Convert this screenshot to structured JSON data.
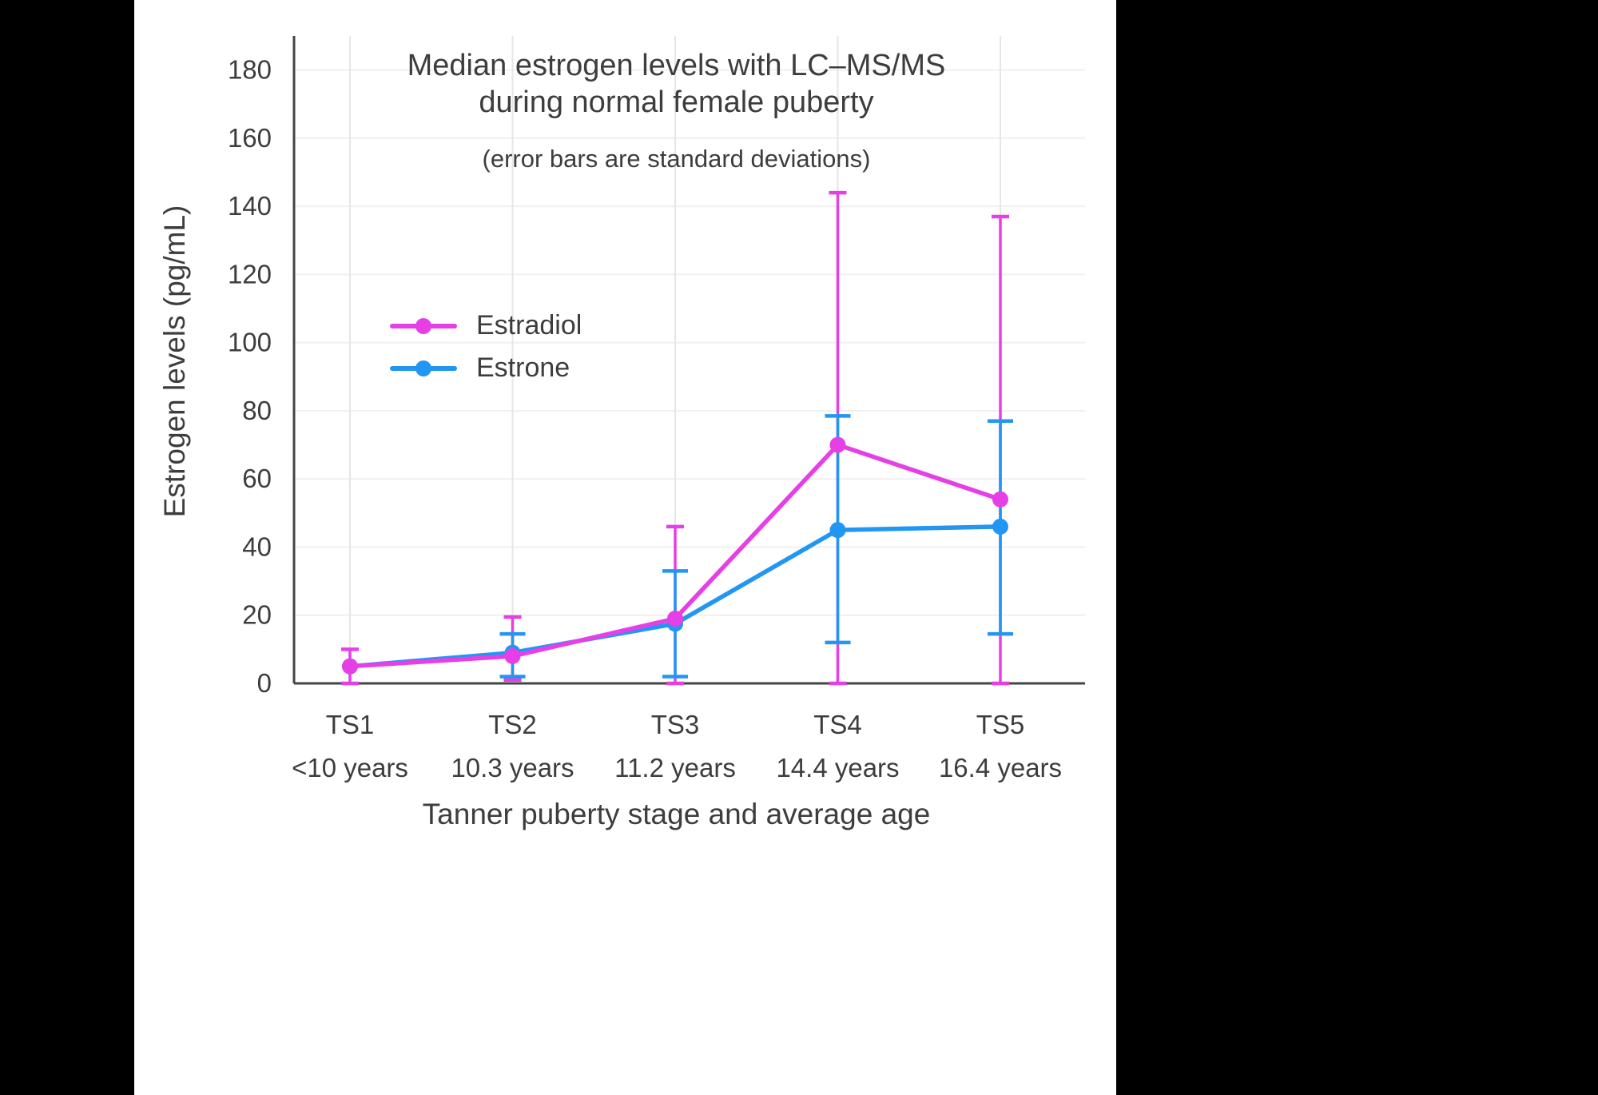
{
  "page": {
    "background_color": "#000000",
    "panel_color": "#ffffff",
    "text_color": "#3d3d3d",
    "axis_color": "#444444"
  },
  "chart_data": {
    "type": "line",
    "title": "Median estrogen levels with LC–MS/MS\nduring normal female puberty",
    "subtitle": "(error bars are standard deviations)",
    "xlabel": "Tanner puberty stage and average age",
    "ylabel": "Estrogen levels (pg/mL)",
    "categories": [
      "TS1",
      "TS2",
      "TS3",
      "TS4",
      "TS5"
    ],
    "category_ages": [
      "<10 years",
      "10.3 years",
      "11.2 years",
      "14.4 years",
      "16.4 years"
    ],
    "ylim": [
      0,
      190
    ],
    "yticks": [
      0,
      20,
      40,
      60,
      80,
      100,
      120,
      140,
      160,
      180
    ],
    "grid": true,
    "legend_position": "inside-left",
    "series": [
      {
        "name": "Estradiol",
        "color": "#E63FE6",
        "values": [
          5,
          8,
          19,
          70,
          54
        ],
        "error_low": [
          0,
          1,
          0,
          0,
          0
        ],
        "error_high": [
          10,
          19.5,
          46,
          144,
          137
        ]
      },
      {
        "name": "Estrone",
        "color": "#2196F3",
        "values": [
          5,
          9,
          17.5,
          45,
          46
        ],
        "error_low": [
          null,
          2,
          2,
          12,
          14.5
        ],
        "error_high": [
          null,
          14.5,
          33,
          78.5,
          77
        ]
      }
    ]
  }
}
